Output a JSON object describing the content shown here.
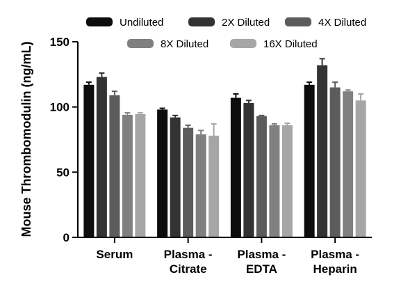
{
  "chart_data": {
    "type": "bar",
    "title": "",
    "xlabel": "",
    "ylabel": "Mouse Thrombomodulin (ng/mL)",
    "ylim": [
      0,
      150
    ],
    "yticks": [
      0,
      50,
      100,
      150
    ],
    "grid": false,
    "legend_position": "top",
    "categories": [
      [
        "Serum"
      ],
      [
        "Plasma -",
        "Citrate"
      ],
      [
        "Plasma -",
        "EDTA"
      ],
      [
        "Plasma -",
        "Heparin"
      ]
    ],
    "series": [
      {
        "name": "Undiluted",
        "color": "#0d0d0d",
        "values": [
          117,
          98,
          107,
          117
        ],
        "errors": [
          2,
          1,
          3,
          2
        ]
      },
      {
        "name": "2X Diluted",
        "color": "#333333",
        "values": [
          123,
          92,
          103,
          132
        ],
        "errors": [
          3,
          1.5,
          2,
          5
        ]
      },
      {
        "name": "4X Diluted",
        "color": "#5c5c5c",
        "values": [
          109,
          84,
          93,
          115
        ],
        "errors": [
          3,
          2,
          0.5,
          4
        ]
      },
      {
        "name": "8X Diluted",
        "color": "#808080",
        "values": [
          94,
          79,
          86,
          112
        ],
        "errors": [
          1.5,
          3,
          1,
          1
        ]
      },
      {
        "name": "16X Diluted",
        "color": "#a6a6a6",
        "values": [
          94.5,
          78,
          86,
          105
        ],
        "errors": [
          1,
          9,
          1.5,
          5
        ]
      }
    ]
  }
}
